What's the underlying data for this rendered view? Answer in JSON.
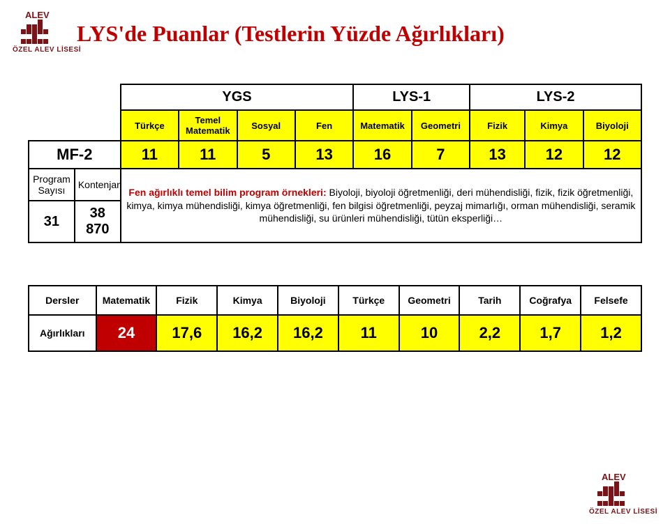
{
  "title": "LYS'de Puanlar (Testlerin Yüzde Ağırlıkları)",
  "title_color": "#c00000",
  "logo": {
    "top_text": "ALEV",
    "sub_text": "ÖZEL ALEV LİSESİ",
    "brand_color": "#7a1318",
    "blocks": [
      [
        0,
        0,
        0,
        1,
        0
      ],
      [
        0,
        1,
        1,
        1,
        0
      ],
      [
        1,
        1,
        1,
        1,
        1
      ],
      [
        0,
        0,
        1,
        0,
        0
      ],
      [
        1,
        1,
        1,
        1,
        1
      ]
    ]
  },
  "table1": {
    "mf_label": "MF-2",
    "groups": {
      "ygs": "YGS",
      "lys1": "LYS-1",
      "lys2": "LYS-2"
    },
    "subheads": {
      "turkce": "Türkçe",
      "temel_mat": "Temel\nMatematik",
      "sosyal": "Sosyal",
      "fen": "Fen",
      "mat": "Matematik",
      "geom": "Geometri",
      "fizik": "Fizik",
      "kimya": "Kimya",
      "biyo": "Biyoloji"
    },
    "vals": {
      "turkce": "11",
      "temel_mat": "11",
      "sosyal": "5",
      "fen": "13",
      "mat": "16",
      "geom": "7",
      "fizik": "13",
      "kimya": "12",
      "biyo": "12"
    },
    "prog_col": {
      "h": "Program\nSayısı",
      "v": "31"
    },
    "kont_col": {
      "h": "Kontenjan",
      "v": "38 870"
    },
    "desc_lead": "Fen ağırlıklı temel bilim program örnekleri: ",
    "desc_rest": "Biyoloji,  biyoloji öğretmenliği, deri mühendisliği, fizik, fizik öğretmenliği, kimya, kimya mühendisliği, kimya öğretmenliği, fen bilgisi öğretmenliği, peyzaj mimarlığı, orman mühendisliği, seramik mühendisliği, su ürünleri mühendisliği, tütün eksperliği…"
  },
  "table2": {
    "row_lbl_dersler": "Dersler",
    "row_lbl_agir": "Ağırlıkları",
    "heads": {
      "mat": "Matematik",
      "fiz": "Fizik",
      "kim": "Kimya",
      "biy": "Biyoloji",
      "tur": "Türkçe",
      "geo": "Geometri",
      "tar": "Tarih",
      "cog": "Coğrafya",
      "fel": "Felsefe"
    },
    "vals": {
      "mat": "24",
      "fiz": "17,6",
      "kim": "16,2",
      "biy": "16,2",
      "tur": "11",
      "geo": "10",
      "tar": "2,2",
      "cog": "1,7",
      "fel": "1,2"
    }
  }
}
